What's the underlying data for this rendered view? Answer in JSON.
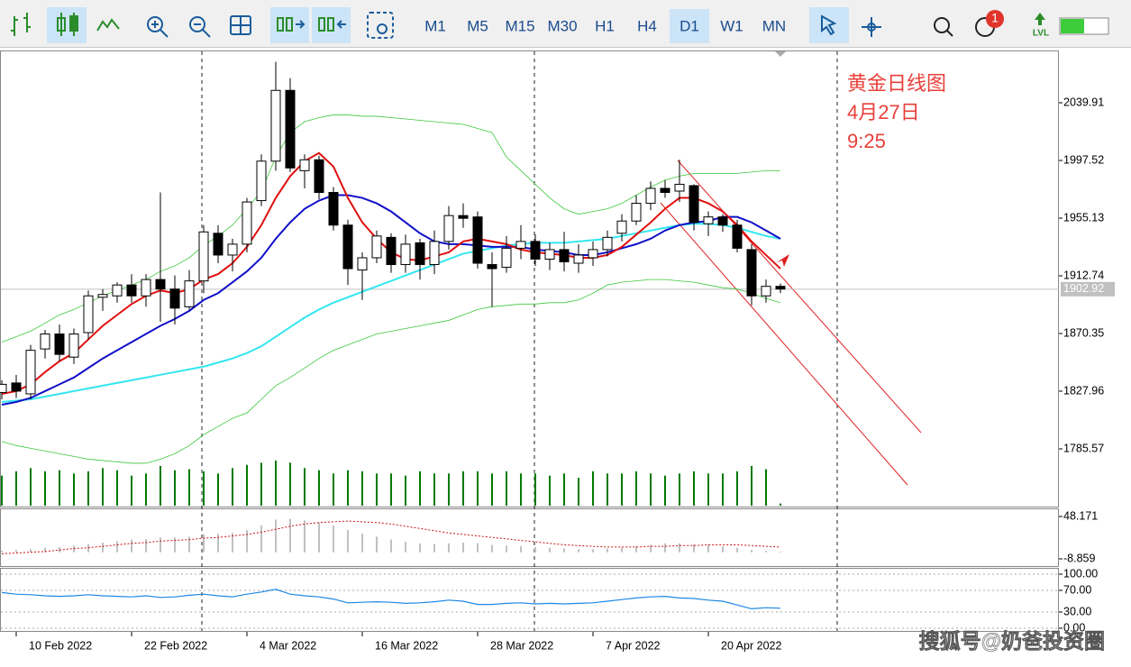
{
  "toolbar": {
    "timeframes": [
      "M1",
      "M5",
      "M15",
      "M30",
      "H1",
      "H4",
      "D1",
      "W1",
      "MN"
    ],
    "active_timeframe": "D1",
    "notifications": 1,
    "level_label": "LVL"
  },
  "chart_data": [
    {
      "type": "candlestick",
      "annotation": [
        "黄金日线图",
        "4月27日",
        "9:25"
      ],
      "watermark": "搜狐号@奶爸投资圈",
      "categories": [
        null,
        "10 Feb 2022",
        null,
        null,
        null,
        null,
        null,
        null,
        null,
        "22 Feb 2022",
        null,
        null,
        null,
        null,
        null,
        null,
        null,
        "4 Mar 2022",
        null,
        null,
        null,
        null,
        null,
        null,
        null,
        "16 Mar 2022",
        null,
        null,
        null,
        null,
        null,
        null,
        null,
        "28 Mar 2022",
        null,
        null,
        null,
        null,
        null,
        null,
        null,
        "7 Apr 2022",
        null,
        null,
        null,
        null,
        null,
        null,
        null,
        "20 Apr 2022",
        null,
        null,
        null,
        null,
        null
      ],
      "open": [
        1827,
        1834,
        1826,
        1859,
        1870,
        1853,
        1871,
        1897,
        1898,
        1906,
        1898,
        1910,
        1903,
        1890,
        1909,
        1944,
        1928,
        1936,
        1968,
        1997,
        2049,
        1990,
        1998,
        1974,
        1950,
        1917,
        1926,
        1941,
        1921,
        1937,
        1921,
        1938,
        1957,
        1956,
        1921,
        1919,
        1933,
        1938,
        1925,
        1932,
        1922,
        1926,
        1932,
        1944,
        1953,
        1966,
        1977,
        1975,
        1979,
        1951,
        1956,
        1950,
        1932,
        1898,
        1905
      ],
      "high": [
        1836,
        1840,
        1862,
        1873,
        1877,
        1874,
        1902,
        1903,
        1908,
        1914,
        1914,
        1974,
        1913,
        1917,
        1950,
        1950,
        1940,
        1970,
        2002,
        2070,
        2058,
        2002,
        2001,
        1978,
        1954,
        1930,
        1946,
        1944,
        1943,
        1940,
        1946,
        1964,
        1966,
        1960,
        1930,
        1942,
        1950,
        1943,
        1937,
        1945,
        1936,
        1938,
        1946,
        1958,
        1972,
        1982,
        1983,
        1998,
        1980,
        1960,
        1958,
        1954,
        1936,
        1910,
        1907
      ],
      "low": [
        1822,
        1823,
        1822,
        1852,
        1850,
        1848,
        1866,
        1887,
        1893,
        1893,
        1890,
        1879,
        1877,
        1888,
        1900,
        1922,
        1916,
        1930,
        1964,
        1990,
        1989,
        1977,
        1969,
        1946,
        1906,
        1895,
        1922,
        1915,
        1915,
        1910,
        1914,
        1932,
        1948,
        1918,
        1890,
        1915,
        1925,
        1920,
        1917,
        1916,
        1915,
        1920,
        1927,
        1938,
        1950,
        1961,
        1970,
        1967,
        1946,
        1942,
        1945,
        1930,
        1891,
        1893,
        1900
      ],
      "close": [
        1833,
        1828,
        1858,
        1870,
        1855,
        1870,
        1898,
        1899,
        1906,
        1898,
        1910,
        1903,
        1889,
        1909,
        1945,
        1928,
        1936,
        1967,
        1997,
        2049,
        1992,
        1998,
        1974,
        1950,
        1918,
        1926,
        1942,
        1921,
        1936,
        1921,
        1938,
        1957,
        1955,
        1922,
        1918,
        1933,
        1938,
        1925,
        1932,
        1923,
        1928,
        1932,
        1941,
        1953,
        1966,
        1977,
        1974,
        1980,
        1952,
        1956,
        1950,
        1933,
        1898,
        1905,
        1903
      ],
      "up_color": "#ffffff",
      "down_color": "#000000",
      "lines": [
        {
          "color": "#3cc83c",
          "width": 0.8,
          "values": [
            1864,
            1868,
            1872,
            1878,
            1884,
            1888,
            1893,
            1898,
            1902,
            1906,
            1910,
            1916,
            1920,
            1926,
            1935,
            1942,
            1950,
            1962,
            1975,
            2000,
            2018,
            2026,
            2029,
            2031,
            2031,
            2030,
            2030,
            2029,
            2028,
            2027,
            2026,
            2025,
            2024,
            2021,
            2018,
            2000,
            1990,
            1980,
            1970,
            1962,
            1958,
            1960,
            1962,
            1966,
            1972,
            1978,
            1983,
            1986,
            1988,
            1988,
            1988,
            1988,
            1989,
            1990,
            1990
          ]
        },
        {
          "color": "#3cc83c",
          "width": 0.8,
          "values": [
            1791,
            1788,
            1786,
            1784,
            1782,
            1780,
            1778,
            1777,
            1776,
            1775,
            1775,
            1778,
            1782,
            1788,
            1796,
            1802,
            1808,
            1812,
            1822,
            1832,
            1838,
            1845,
            1852,
            1858,
            1862,
            1866,
            1870,
            1872,
            1874,
            1876,
            1878,
            1880,
            1884,
            1888,
            1890,
            1891,
            1892,
            1892,
            1893,
            1893,
            1895,
            1900,
            1906,
            1908,
            1909,
            1910,
            1910,
            1909,
            1908,
            1906,
            1904,
            1903,
            1900,
            1896,
            1893
          ]
        },
        {
          "color": "#33e6f0",
          "width": 2,
          "values": [
            1820,
            1821,
            1822,
            1824,
            1826,
            1828,
            1830,
            1832,
            1834,
            1836,
            1838,
            1840,
            1842,
            1844,
            1846,
            1849,
            1852,
            1856,
            1861,
            1868,
            1875,
            1882,
            1888,
            1893,
            1897,
            1901,
            1905,
            1909,
            1913,
            1917,
            1921,
            1925,
            1929,
            1931,
            1933,
            1935,
            1936,
            1937,
            1937,
            1937,
            1938,
            1939,
            1940,
            1942,
            1944,
            1946,
            1948,
            1950,
            1951,
            1951,
            1950,
            1948,
            1945,
            1942,
            1940
          ]
        },
        {
          "color": "#1010c8",
          "width": 2,
          "values": [
            1818,
            1820,
            1823,
            1828,
            1833,
            1838,
            1845,
            1852,
            1858,
            1864,
            1870,
            1876,
            1881,
            1887,
            1895,
            1900,
            1908,
            1916,
            1926,
            1940,
            1952,
            1962,
            1968,
            1972,
            1972,
            1970,
            1966,
            1960,
            1952,
            1944,
            1938,
            1936,
            1936,
            1935,
            1934,
            1934,
            1934,
            1932,
            1931,
            1930,
            1928,
            1928,
            1930,
            1933,
            1936,
            1940,
            1946,
            1950,
            1952,
            1953,
            1956,
            1956,
            1952,
            1946,
            1940
          ]
        },
        {
          "color": "#e01010",
          "width": 2,
          "values": [
            1826,
            1828,
            1833,
            1842,
            1850,
            1856,
            1866,
            1876,
            1884,
            1892,
            1898,
            1902,
            1900,
            1903,
            1910,
            1914,
            1922,
            1934,
            1950,
            1970,
            1986,
            1997,
            2003,
            1993,
            1970,
            1952,
            1940,
            1930,
            1925,
            1924,
            1927,
            1930,
            1938,
            1940,
            1938,
            1936,
            1932,
            1930,
            1929,
            1928,
            1926,
            1926,
            1928,
            1934,
            1943,
            1952,
            1962,
            1970,
            1970,
            1966,
            1960,
            1950,
            1938,
            1928,
            1918
          ]
        }
      ],
      "volume": [
        28,
        32,
        35,
        32,
        33,
        30,
        32,
        35,
        33,
        28,
        30,
        37,
        33,
        34,
        32,
        30,
        35,
        38,
        40,
        42,
        40,
        35,
        33,
        30,
        33,
        32,
        30,
        30,
        28,
        32,
        30,
        30,
        32,
        32,
        30,
        32,
        30,
        30,
        28,
        30,
        26,
        32,
        30,
        30,
        32,
        30,
        28,
        30,
        32,
        30,
        30,
        32,
        37,
        34,
        2
      ],
      "volume_color": "#007a00",
      "last_price": 1902.92,
      "ylim": [
        1743.18,
        2077.66
      ],
      "yticks": [
        1785.57,
        1827.96,
        1870.35,
        1912.74,
        1955.13,
        1997.52,
        2039.91
      ]
    },
    {
      "type": "macd",
      "histogram": [
        2,
        3,
        4,
        6,
        7,
        9,
        11,
        13,
        15,
        17,
        18,
        20,
        20,
        21,
        24,
        25,
        26,
        30,
        36,
        44,
        45,
        43,
        40,
        36,
        30,
        25,
        21,
        17,
        14,
        12,
        11,
        12,
        13,
        12,
        10,
        9,
        8,
        7,
        6,
        5,
        4,
        4,
        5,
        6,
        8,
        10,
        12,
        12,
        11,
        10,
        8,
        6,
        3,
        2,
        1
      ],
      "signal": [
        -2,
        -1,
        0,
        1,
        3,
        5,
        6,
        8,
        10,
        12,
        13,
        15,
        16,
        17,
        19,
        20,
        22,
        24,
        27,
        31,
        35,
        38,
        40,
        41,
        42,
        41,
        40,
        38,
        35,
        32,
        29,
        26,
        24,
        22,
        20,
        18,
        16,
        14,
        12,
        10,
        9,
        8,
        7,
        7,
        7,
        8,
        8,
        9,
        9,
        10,
        10,
        10,
        9,
        8,
        7
      ],
      "histogram_color": "#c0c0c0",
      "signal_color": "#d01010",
      "ylim": [
        -18.57,
        57.88
      ],
      "yticks": [
        -8.859,
        48.171
      ]
    },
    {
      "type": "line",
      "values": [
        66,
        63,
        62,
        60,
        59,
        60,
        62,
        60,
        59,
        58,
        60,
        57,
        58,
        61,
        63,
        60,
        58,
        63,
        67,
        72,
        63,
        60,
        58,
        54,
        47,
        48,
        49,
        48,
        46,
        47,
        49,
        52,
        50,
        44,
        44,
        46,
        47,
        45,
        46,
        45,
        46,
        47,
        50,
        53,
        56,
        58,
        59,
        56,
        55,
        52,
        50,
        43,
        36,
        38,
        37
      ],
      "color": "#1e88e5",
      "ylim": [
        -5,
        110
      ],
      "yticks": [
        {
          "value": 0,
          "label": "0.00"
        },
        {
          "value": 30,
          "label": "30.00"
        },
        {
          "value": 70,
          "label": "70.00"
        },
        {
          "value": 100,
          "label": "100.00"
        }
      ]
    }
  ]
}
